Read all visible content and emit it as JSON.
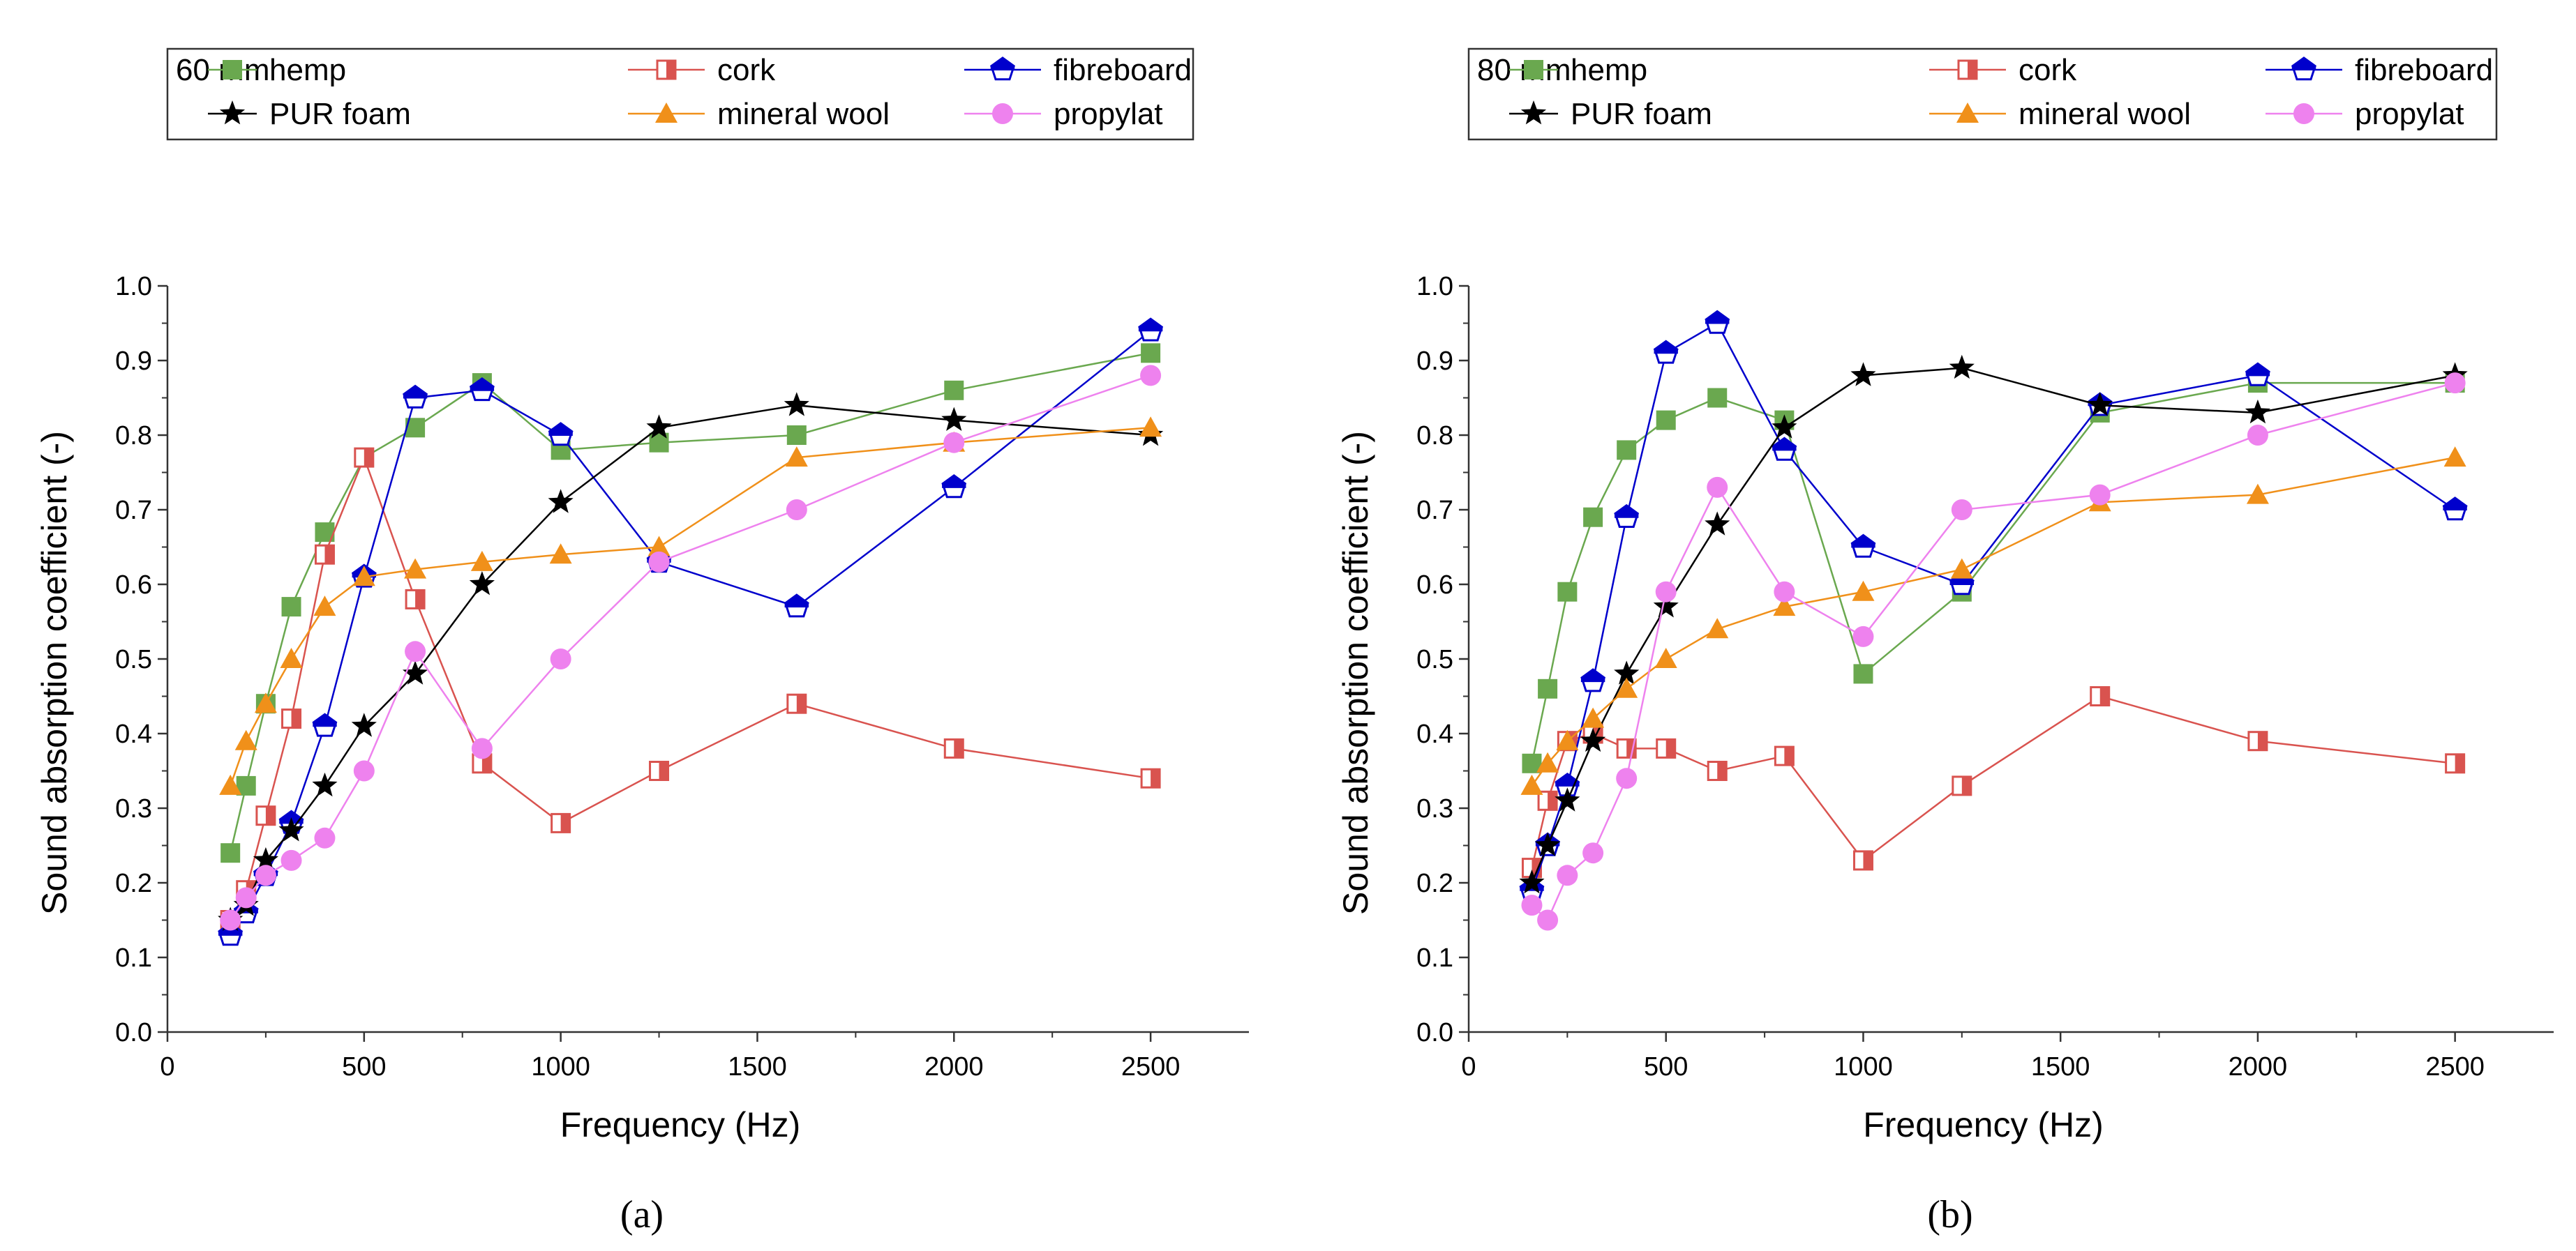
{
  "chart_data": [
    {
      "type": "line",
      "panel_label": "(a)",
      "legend_title": "60 mm",
      "xlabel": "Frequency (Hz)",
      "ylabel": "Sound absorption coefficient (-)",
      "xlim": [
        0,
        2750
      ],
      "ylim": [
        0,
        1.0
      ],
      "xticks": [
        "0",
        "500",
        "1000",
        "1500",
        "2000",
        "2500"
      ],
      "yticks": [
        "0.0",
        "0.1",
        "0.2",
        "0.3",
        "0.4",
        "0.5",
        "0.6",
        "0.7",
        "0.8",
        "0.9",
        "1.0"
      ],
      "grid": false,
      "legend_position": "top",
      "x": [
        160,
        200,
        250,
        315,
        400,
        500,
        630,
        800,
        1000,
        1250,
        1600,
        2000,
        2500
      ],
      "series": [
        {
          "name": "hemp",
          "marker": "square",
          "color": "#6aa84f",
          "values": [
            0.24,
            0.33,
            0.44,
            0.57,
            0.67,
            0.77,
            0.81,
            0.87,
            0.78,
            0.79,
            0.8,
            0.86,
            0.91
          ]
        },
        {
          "name": "cork",
          "marker": "half-square",
          "color": "#d9534f",
          "values": [
            0.15,
            0.19,
            0.29,
            0.42,
            0.64,
            0.77,
            0.58,
            0.36,
            0.28,
            0.35,
            0.44,
            0.38,
            0.34
          ]
        },
        {
          "name": "fibreboard",
          "marker": "half-pentagon",
          "color": "#0000cc",
          "values": [
            0.13,
            0.16,
            0.21,
            0.28,
            0.41,
            0.61,
            0.85,
            0.86,
            0.8,
            0.63,
            0.57,
            0.73,
            0.94
          ]
        },
        {
          "name": "PUR foam",
          "marker": "star",
          "color": "#000000",
          "values": [
            0.15,
            0.17,
            0.23,
            0.27,
            0.33,
            0.41,
            0.48,
            0.6,
            0.71,
            0.81,
            0.84,
            0.82,
            0.8
          ]
        },
        {
          "name": "mineral wool",
          "marker": "triangle",
          "color": "#f0901a",
          "values": [
            0.33,
            0.39,
            0.44,
            0.5,
            0.57,
            0.61,
            0.62,
            0.63,
            0.64,
            0.65,
            0.77,
            0.79,
            0.81
          ]
        },
        {
          "name": "propylat",
          "marker": "circle",
          "color": "#ee82ee",
          "values": [
            0.15,
            0.18,
            0.21,
            0.23,
            0.26,
            0.35,
            0.51,
            0.38,
            0.5,
            0.63,
            0.7,
            0.79,
            0.88
          ]
        }
      ]
    },
    {
      "type": "line",
      "panel_label": "(b)",
      "legend_title": "80 mm",
      "xlabel": "Frequency (Hz)",
      "ylabel": "Sound absorption coefficient (-)",
      "xlim": [
        0,
        2750
      ],
      "ylim": [
        0,
        1.0
      ],
      "xticks": [
        "0",
        "500",
        "1000",
        "1500",
        "2000",
        "2500"
      ],
      "yticks": [
        "0.0",
        "0.1",
        "0.2",
        "0.3",
        "0.4",
        "0.5",
        "0.6",
        "0.7",
        "0.8",
        "0.9",
        "1.0"
      ],
      "grid": false,
      "legend_position": "top",
      "x": [
        160,
        200,
        250,
        315,
        400,
        500,
        630,
        800,
        1000,
        1250,
        1600,
        2000,
        2500
      ],
      "series": [
        {
          "name": "hemp",
          "marker": "square",
          "color": "#6aa84f",
          "values": [
            0.36,
            0.46,
            0.59,
            0.69,
            0.78,
            0.82,
            0.85,
            0.82,
            0.48,
            0.59,
            0.83,
            0.87,
            0.87
          ]
        },
        {
          "name": "cork",
          "marker": "half-square",
          "color": "#d9534f",
          "values": [
            0.22,
            0.31,
            0.39,
            0.4,
            0.38,
            0.38,
            0.35,
            0.37,
            0.23,
            0.33,
            0.45,
            0.39,
            0.36
          ]
        },
        {
          "name": "fibreboard",
          "marker": "half-pentagon",
          "color": "#0000cc",
          "values": [
            0.19,
            0.25,
            0.33,
            0.47,
            0.69,
            0.91,
            0.95,
            0.78,
            0.65,
            0.6,
            0.84,
            0.88,
            0.7
          ]
        },
        {
          "name": "PUR foam",
          "marker": "star",
          "color": "#000000",
          "values": [
            0.2,
            0.25,
            0.31,
            0.39,
            0.48,
            0.57,
            0.68,
            0.81,
            0.88,
            0.89,
            0.84,
            0.83,
            0.88
          ]
        },
        {
          "name": "mineral wool",
          "marker": "triangle",
          "color": "#f0901a",
          "values": [
            0.33,
            0.36,
            0.39,
            0.42,
            0.46,
            0.5,
            0.54,
            0.57,
            0.59,
            0.62,
            0.71,
            0.72,
            0.77
          ]
        },
        {
          "name": "propylat",
          "marker": "circle",
          "color": "#ee82ee",
          "values": [
            0.17,
            0.15,
            0.21,
            0.24,
            0.34,
            0.59,
            0.73,
            0.59,
            0.53,
            0.7,
            0.72,
            0.8,
            0.87
          ]
        }
      ]
    }
  ]
}
